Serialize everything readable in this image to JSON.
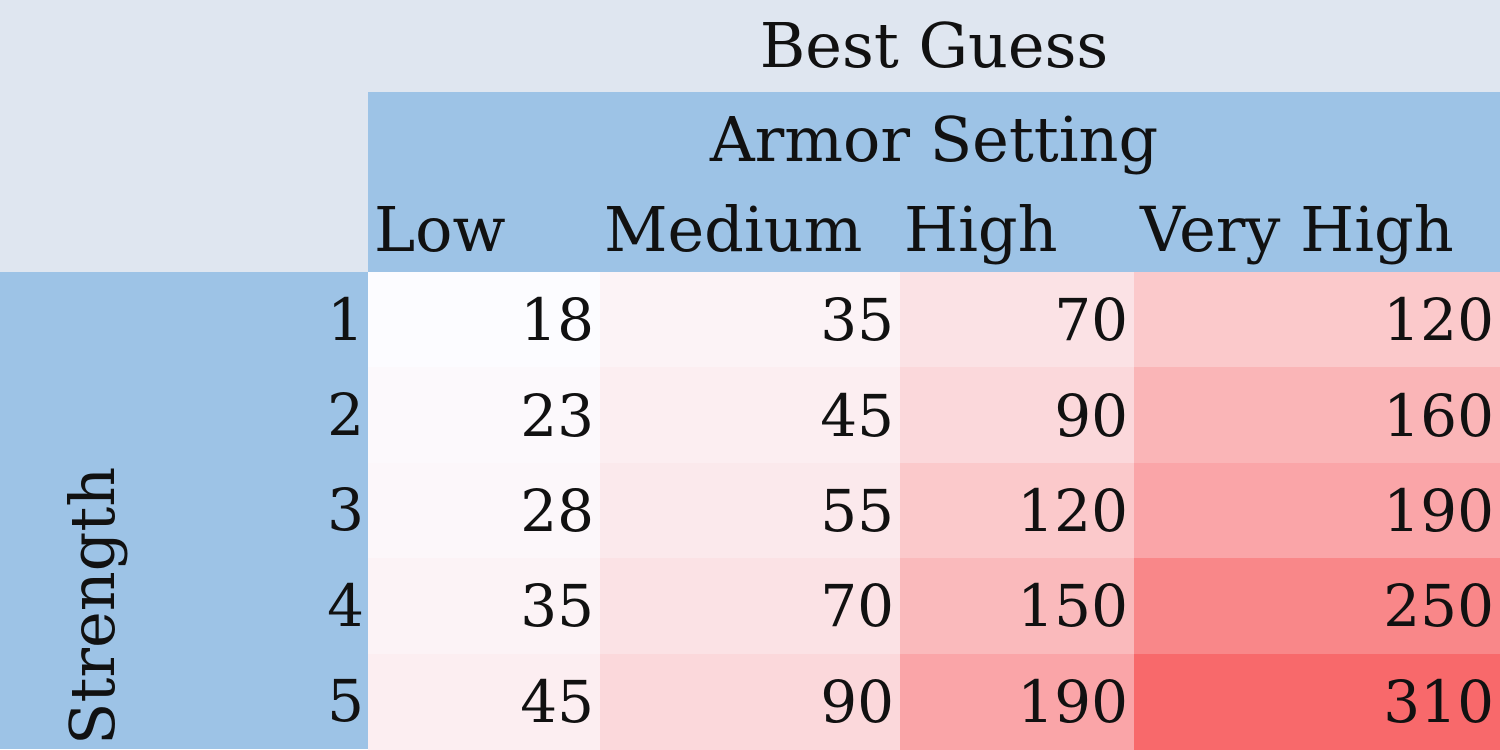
{
  "colors": {
    "header_band": "#dfe6f0",
    "header_fill": "#9dc3e6",
    "heat_low": "#fcfcff",
    "heat_high": "#f8696b"
  },
  "chart_data": {
    "type": "heatmap",
    "title": "Best Guess",
    "column_group_label": "Armor Setting",
    "row_label": "Strength",
    "columns": [
      "Low",
      "Medium",
      "High",
      "Very High"
    ],
    "rows": [
      "1",
      "2",
      "3",
      "4",
      "5"
    ],
    "values": [
      [
        18,
        35,
        70,
        120
      ],
      [
        23,
        45,
        90,
        160
      ],
      [
        28,
        55,
        120,
        190
      ],
      [
        35,
        70,
        150,
        250
      ],
      [
        45,
        90,
        190,
        310
      ]
    ],
    "color_scale": [
      "#fcfcff",
      "#f8696b"
    ]
  }
}
